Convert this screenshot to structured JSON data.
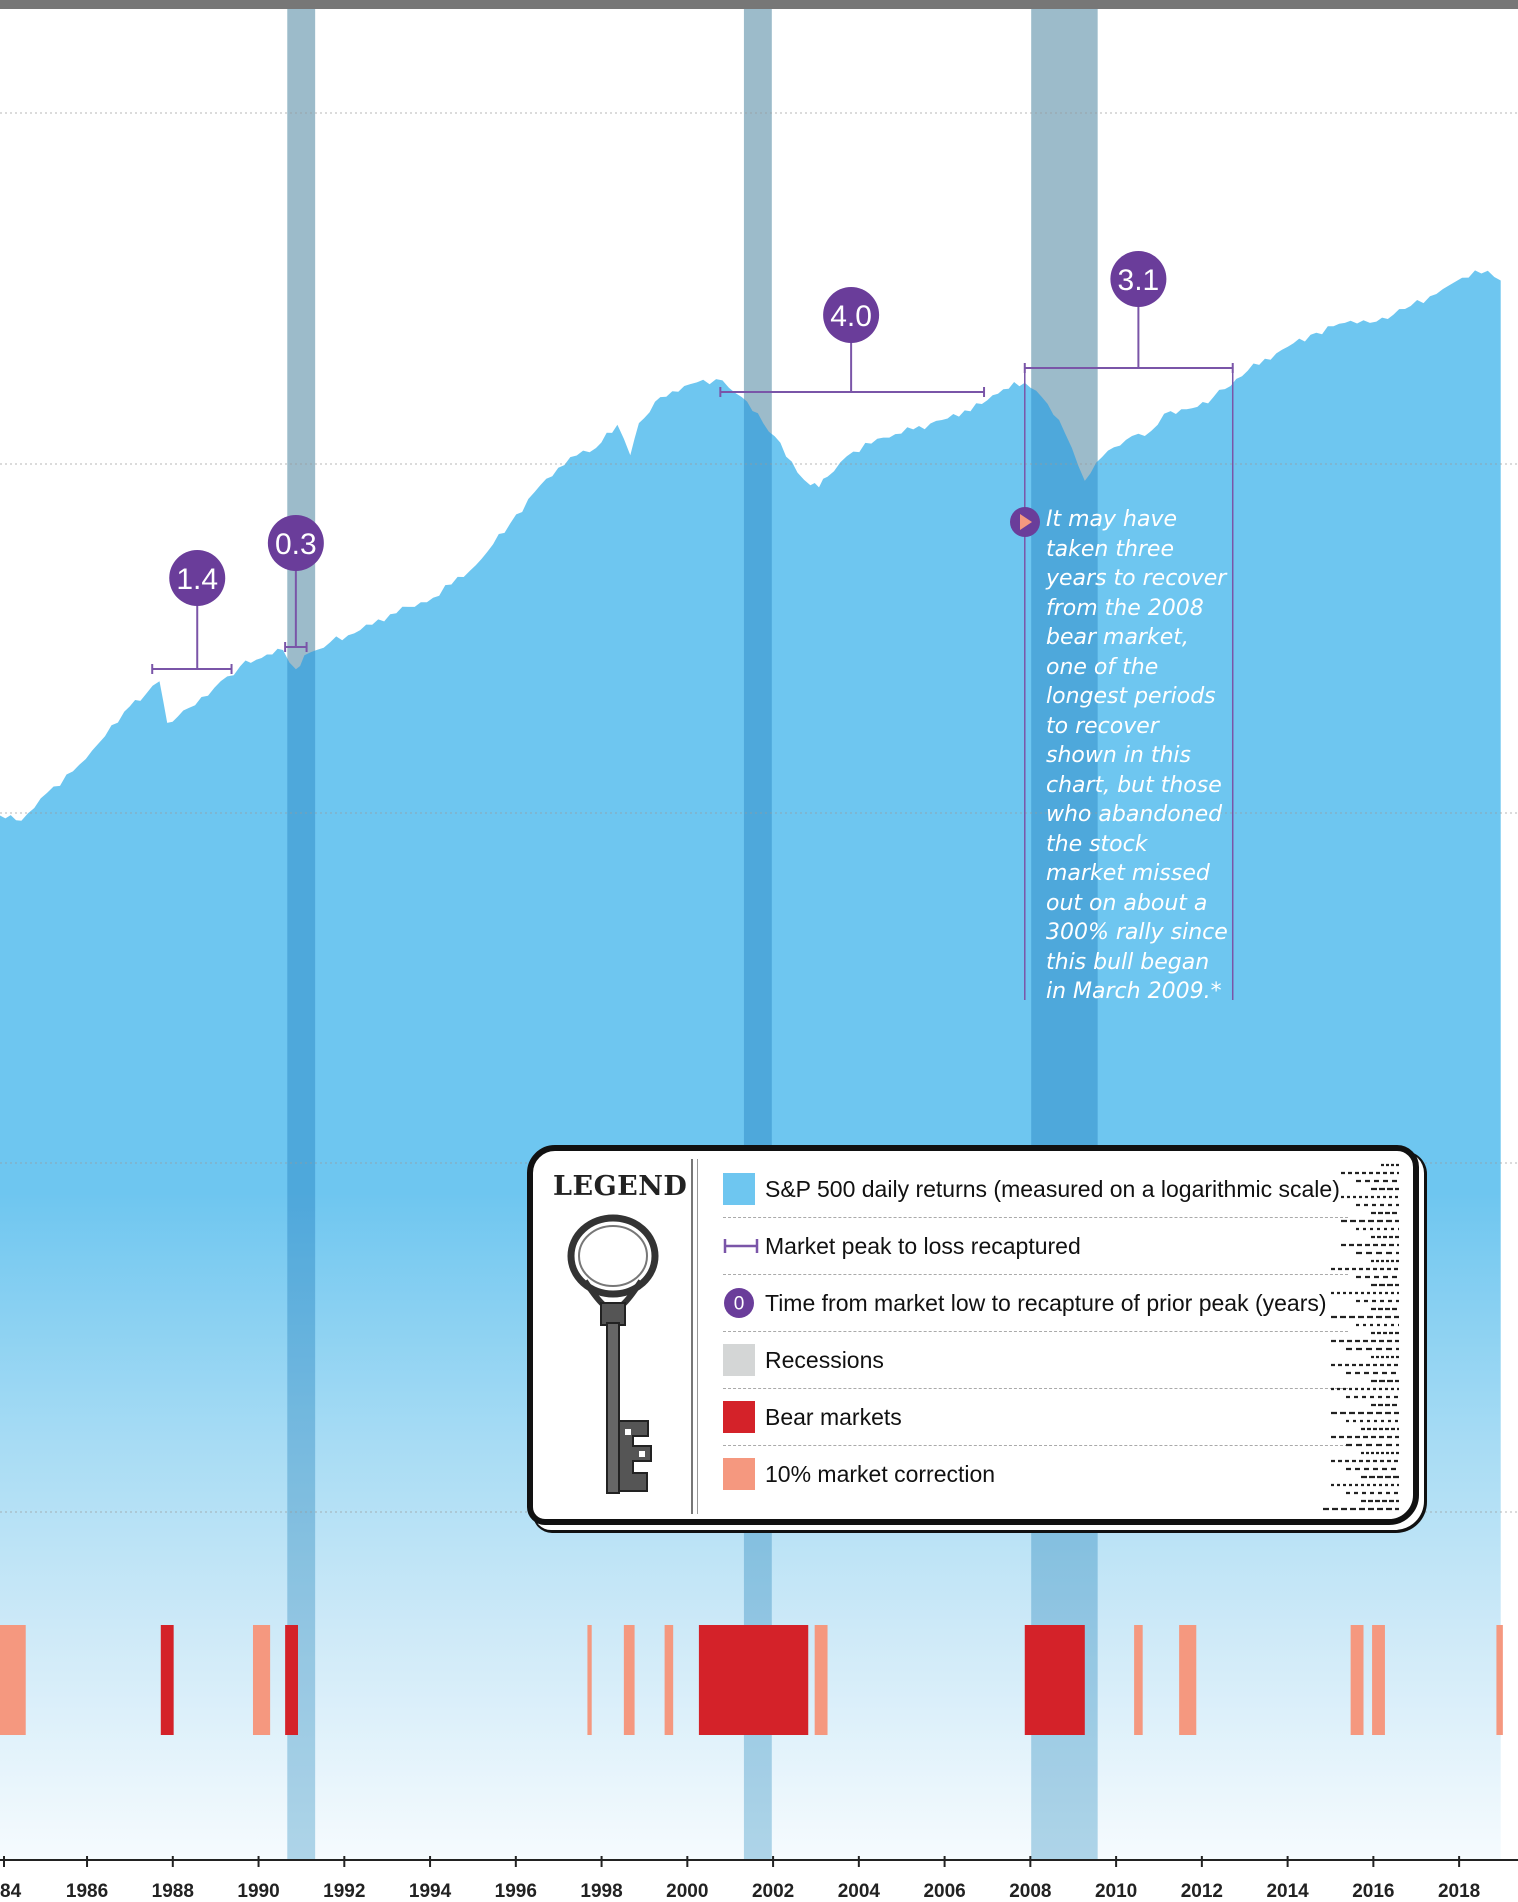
{
  "chart_data": {
    "type": "area",
    "x_ticks": [
      "84",
      "1986",
      "1988",
      "1990",
      "1992",
      "1994",
      "1996",
      "1998",
      "2000",
      "2002",
      "2004",
      "2006",
      "2008",
      "2010",
      "2012",
      "2014",
      "2016",
      "2018"
    ],
    "y_scale": "log",
    "grid": "horizontal dotted",
    "series": [
      {
        "name": "S&P 500 daily returns (measured on a logarithmic scale)",
        "x": [
          1983.9,
          1984.4,
          1985.0,
          1985.6,
          1986.2,
          1986.8,
          1987.3,
          1987.62,
          1987.8,
          1988.3,
          1988.9,
          1989.5,
          1990.0,
          1990.5,
          1990.8,
          1991.0,
          1991.6,
          1992.3,
          1993.0,
          1994.0,
          1995.0,
          1995.8,
          1996.5,
          1997.2,
          1997.8,
          1998.3,
          1998.6,
          1998.8,
          1999.3,
          2000.0,
          2000.6,
          2001.2,
          2001.7,
          2002.1,
          2002.5,
          2002.8,
          2003.0,
          2003.2,
          2003.8,
          2004.5,
          2005.2,
          2006.0,
          2006.8,
          2007.3,
          2007.8,
          2008.2,
          2008.6,
          2008.9,
          2009.2,
          2009.6,
          2010.3,
          2010.6,
          2011.2,
          2011.7,
          2012.2,
          2013.0,
          2013.8,
          2014.6,
          2015.4,
          2016.0,
          2016.8,
          2017.4,
          2018.0,
          2018.6,
          2018.9
        ],
        "values": [
          146,
          142,
          165,
          185,
          215,
          255,
          280,
          300,
          240,
          260,
          290,
          325,
          340,
          355,
          320,
          345,
          370,
          395,
          430,
          470,
          560,
          700,
          860,
          1000,
          1050,
          1190,
          1010,
          1200,
          1380,
          1480,
          1520,
          1380,
          1200,
          1080,
          920,
          860,
          850,
          900,
          1030,
          1110,
          1160,
          1230,
          1330,
          1440,
          1490,
          1380,
          1220,
          1050,
          880,
          1000,
          1120,
          1120,
          1280,
          1300,
          1380,
          1590,
          1780,
          1950,
          2080,
          2070,
          2250,
          2400,
          2620,
          2720,
          2580
        ]
      }
    ],
    "recessions": [
      [
        1990.6,
        1991.25
      ],
      [
        2001.25,
        2001.9
      ],
      [
        2007.95,
        2009.5
      ]
    ],
    "bear_markets": [
      [
        1987.65,
        1987.95
      ],
      [
        1990.55,
        1990.85
      ],
      [
        2000.2,
        2002.75
      ],
      [
        2007.8,
        2009.2
      ]
    ],
    "corrections": [
      [
        1983.9,
        1984.5
      ],
      [
        1989.8,
        1990.2
      ],
      [
        1997.6,
        1997.7
      ],
      [
        1998.45,
        1998.7
      ],
      [
        1999.4,
        1999.6
      ],
      [
        2002.9,
        2003.2
      ],
      [
        2010.35,
        2010.55
      ],
      [
        2011.4,
        2011.8
      ],
      [
        2015.4,
        2015.7
      ],
      [
        2015.9,
        2016.2
      ],
      [
        2018.8,
        2018.95
      ]
    ],
    "recovery_annotations": [
      {
        "label": "1.4",
        "from": 1987.45,
        "to": 1989.3,
        "at": 1988.5
      },
      {
        "label": "0.3",
        "from": 1990.55,
        "to": 1991.05,
        "at": 1990.8
      },
      {
        "label": "4.0",
        "from": 2000.7,
        "to": 2006.85,
        "at": 2003.75
      },
      {
        "label": "3.1",
        "from": 2007.8,
        "to": 2012.65,
        "at": 2010.45
      }
    ]
  },
  "annotation": {
    "lines": [
      "It may have",
      "taken three",
      "years to recover",
      "from the 2008",
      "bear market,",
      "one of the",
      "longest periods",
      "to recover",
      "shown in this",
      "chart, but those",
      "who abandoned",
      "the stock",
      "market missed",
      "out on about a",
      "300% rally since",
      "this bull began",
      "in March 2009.*"
    ]
  },
  "legend": {
    "title": "LEGEND",
    "items": [
      {
        "label": "S&P 500 daily returns (measured on a logarithmic scale)",
        "color": "#6ec6f0"
      },
      {
        "label": "Market peak to loss recaptured",
        "color": "#7a55a8"
      },
      {
        "label": "Time from market low to recapture of prior peak (years)",
        "color": "#6a3d9a",
        "badge_text": "0"
      },
      {
        "label": "Recessions",
        "color": "#d4d6d6"
      },
      {
        "label": "Bear markets",
        "color": "#d42229"
      },
      {
        "label": "10% market correction",
        "color": "#f5987f"
      }
    ]
  },
  "colors": {
    "area": "#6ec6f0",
    "recession": "#dcdddd",
    "recession_overlay": "#5aa9cf",
    "bear": "#d42229",
    "correction": "#f5987f",
    "badge": "#6a3d9a",
    "bracket": "#7a55a8",
    "top_bar": "#777777"
  }
}
